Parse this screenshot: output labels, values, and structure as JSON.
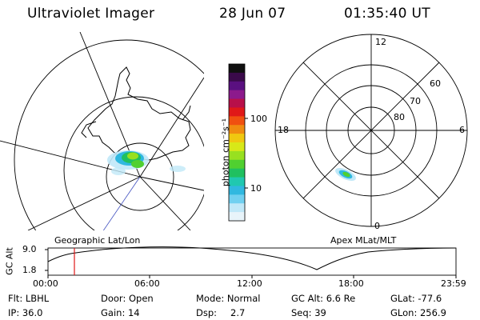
{
  "header": {
    "title": "Ultraviolet Imager",
    "date": "28 Jun 07",
    "time": "01:35:40 UT"
  },
  "colorbar": {
    "label": "photon cm⁻²s⁻¹",
    "ticks": [
      "100",
      "10"
    ],
    "colors": [
      "#101010",
      "#3a0a4a",
      "#5a1080",
      "#8c1a8c",
      "#b8104a",
      "#e01818",
      "#f05010",
      "#f08c10",
      "#f0c810",
      "#d8e818",
      "#98e020",
      "#50d030",
      "#20c060",
      "#20c8b0",
      "#30b8e0",
      "#70d0f0",
      "#c0e8f8",
      "#e8f4fa"
    ]
  },
  "left_map": {
    "caption": "Geographic Lat/Lon"
  },
  "right_map": {
    "caption": "Apex MLat/MLT",
    "mlt_labels": {
      "top": "12",
      "left": "18",
      "right": "6",
      "bottom": "0"
    },
    "lat_labels": [
      "60",
      "70",
      "80"
    ]
  },
  "altitude_panel": {
    "ylabel": "GC Alt",
    "yticks": [
      "9.0",
      "1.8"
    ],
    "xticks": [
      "00:00",
      "06:00",
      "12:00",
      "18:00",
      "23:59"
    ],
    "current_time_marker": "01:35"
  },
  "footer": {
    "row1": {
      "flt": "Flt: LBHL",
      "door": "Door: Open",
      "mode": "Mode: Normal",
      "gcalt": "GC Alt: 6.6 Re",
      "glat": "GLat: -77.6"
    },
    "row2": {
      "ip": "IP: 36.0",
      "gain": "Gain: 14",
      "dsp_label": "Dsp:",
      "dsp_value": "2.7",
      "seq": "Seq: 39",
      "glon": "GLon: 256.9"
    }
  }
}
